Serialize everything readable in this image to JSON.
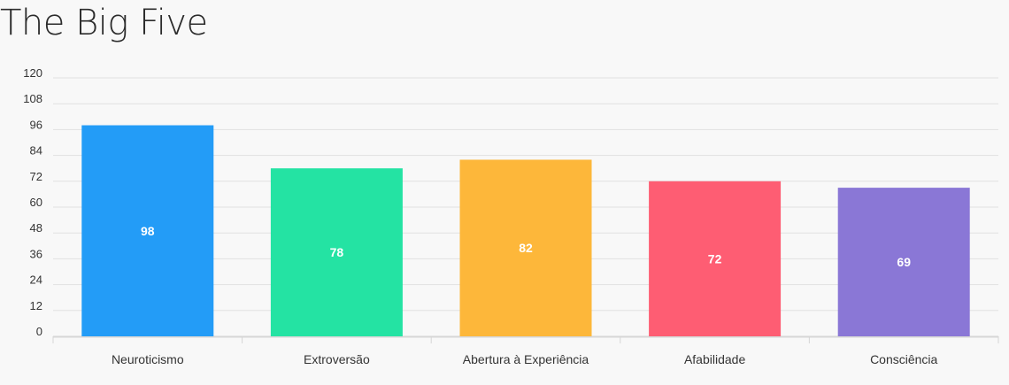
{
  "chart_data": {
    "type": "bar",
    "title": "The Big Five",
    "categories": [
      "Neuroticismo",
      "Extroversão",
      "Abertura à Experiência",
      "Afabilidade",
      "Consciência"
    ],
    "values": [
      98,
      78,
      82,
      72,
      69
    ],
    "colors": [
      "#239cf7",
      "#24e3a3",
      "#fdb73a",
      "#fe5d73",
      "#8a77d6"
    ],
    "ylim": [
      0,
      120
    ],
    "yticks": [
      0,
      12,
      24,
      36,
      48,
      60,
      72,
      84,
      96,
      108,
      120
    ],
    "grid": true,
    "data_labels": true
  }
}
